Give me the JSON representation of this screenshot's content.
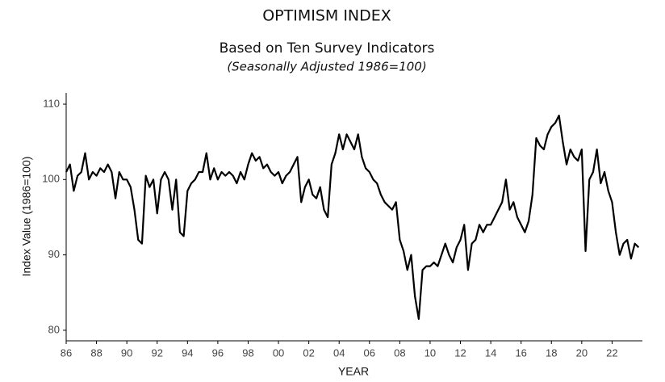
{
  "chart_data": {
    "type": "line",
    "title": "OPTIMISM INDEX",
    "subtitle": "Based on Ten Survey Indicators",
    "note": "(Seasonally Adjusted 1986=100)",
    "y_label": "Index Value (1986=100)",
    "x_label": "YEAR",
    "color": "#000000",
    "xlim": [
      1986,
      2024
    ],
    "ylim": [
      78.6,
      111.5
    ],
    "yticks": [
      80,
      90,
      100,
      110
    ],
    "xticks": [
      {
        "value": 1986,
        "label": "86"
      },
      {
        "value": 1988,
        "label": "88"
      },
      {
        "value": 1990,
        "label": "90"
      },
      {
        "value": 1992,
        "label": "92"
      },
      {
        "value": 1994,
        "label": "94"
      },
      {
        "value": 1996,
        "label": "96"
      },
      {
        "value": 1998,
        "label": "98"
      },
      {
        "value": 2000,
        "label": "00"
      },
      {
        "value": 2002,
        "label": "02"
      },
      {
        "value": 2004,
        "label": "04"
      },
      {
        "value": 2006,
        "label": "06"
      },
      {
        "value": 2008,
        "label": "08"
      },
      {
        "value": 2010,
        "label": "10"
      },
      {
        "value": 2012,
        "label": "12"
      },
      {
        "value": 2014,
        "label": "14"
      },
      {
        "value": 2016,
        "label": "16"
      },
      {
        "value": 2018,
        "label": "18"
      },
      {
        "value": 2020,
        "label": "20"
      },
      {
        "value": 2022,
        "label": "22"
      }
    ],
    "x": [
      1986,
      1986.25,
      1986.5,
      1986.75,
      1987,
      1987.25,
      1987.5,
      1987.75,
      1988,
      1988.25,
      1988.5,
      1988.75,
      1989,
      1989.25,
      1989.5,
      1989.75,
      1990,
      1990.25,
      1990.5,
      1990.75,
      1991,
      1991.25,
      1991.5,
      1991.75,
      1992,
      1992.25,
      1992.5,
      1992.75,
      1993,
      1993.25,
      1993.5,
      1993.75,
      1994,
      1994.25,
      1994.5,
      1994.75,
      1995,
      1995.25,
      1995.5,
      1995.75,
      1996,
      1996.25,
      1996.5,
      1996.75,
      1997,
      1997.25,
      1997.5,
      1997.75,
      1998,
      1998.25,
      1998.5,
      1998.75,
      1999,
      1999.25,
      1999.5,
      1999.75,
      2000,
      2000.25,
      2000.5,
      2000.75,
      2001,
      2001.25,
      2001.5,
      2001.75,
      2002,
      2002.25,
      2002.5,
      2002.75,
      2003,
      2003.25,
      2003.5,
      2003.75,
      2004,
      2004.25,
      2004.5,
      2004.75,
      2005,
      2005.25,
      2005.5,
      2005.75,
      2006,
      2006.25,
      2006.5,
      2006.75,
      2007,
      2007.25,
      2007.5,
      2007.75,
      2008,
      2008.25,
      2008.5,
      2008.75,
      2009,
      2009.25,
      2009.5,
      2009.75,
      2010,
      2010.25,
      2010.5,
      2010.75,
      2011,
      2011.25,
      2011.5,
      2011.75,
      2012,
      2012.25,
      2012.5,
      2012.75,
      2013,
      2013.25,
      2013.5,
      2013.75,
      2014,
      2014.25,
      2014.5,
      2014.75,
      2015,
      2015.25,
      2015.5,
      2015.75,
      2016,
      2016.25,
      2016.5,
      2016.75,
      2017,
      2017.25,
      2017.5,
      2017.75,
      2018,
      2018.25,
      2018.5,
      2018.75,
      2019,
      2019.25,
      2019.5,
      2019.75,
      2020,
      2020.25,
      2020.5,
      2020.75,
      2021,
      2021.25,
      2021.5,
      2021.75,
      2022,
      2022.25,
      2022.5,
      2022.75,
      2023,
      2023.25,
      2023.5,
      2023.75
    ],
    "values": [
      101,
      102,
      98.5,
      100.5,
      101,
      103.5,
      100,
      101,
      100.5,
      101.5,
      101,
      102,
      101,
      97.5,
      101,
      100,
      100,
      99,
      96,
      92,
      91.5,
      100.5,
      99,
      100,
      95.5,
      100,
      101,
      100,
      96,
      100,
      93,
      92.5,
      98.5,
      99.5,
      100,
      101,
      101,
      103.5,
      100,
      101.5,
      100,
      101,
      100.5,
      101,
      100.5,
      99.5,
      101,
      100,
      102,
      103.5,
      102.5,
      103,
      101.5,
      102,
      101,
      100.5,
      101,
      99.5,
      100.5,
      101,
      102,
      103,
      97,
      99,
      100,
      98,
      97.5,
      99,
      96,
      95,
      102,
      103.5,
      106,
      104,
      106,
      105,
      104,
      106,
      103,
      101.5,
      101,
      100,
      99.5,
      98,
      97,
      96.5,
      96,
      97,
      92,
      90.5,
      88,
      90,
      84.5,
      81.5,
      88,
      88.5,
      88.5,
      89,
      88.5,
      90,
      91.5,
      90,
      89,
      91,
      92,
      94,
      88,
      91.5,
      92,
      94,
      93,
      94,
      94,
      95,
      96,
      97,
      100,
      96,
      97,
      95,
      94,
      93,
      94.5,
      98,
      105.5,
      104.5,
      104,
      106,
      107,
      107.5,
      108.5,
      105,
      102,
      104,
      103,
      102.5,
      104,
      90.5,
      100,
      101,
      104,
      99.5,
      101,
      98.5,
      97,
      93,
      90,
      91.5,
      92,
      89.5,
      91.5,
      91
    ]
  }
}
